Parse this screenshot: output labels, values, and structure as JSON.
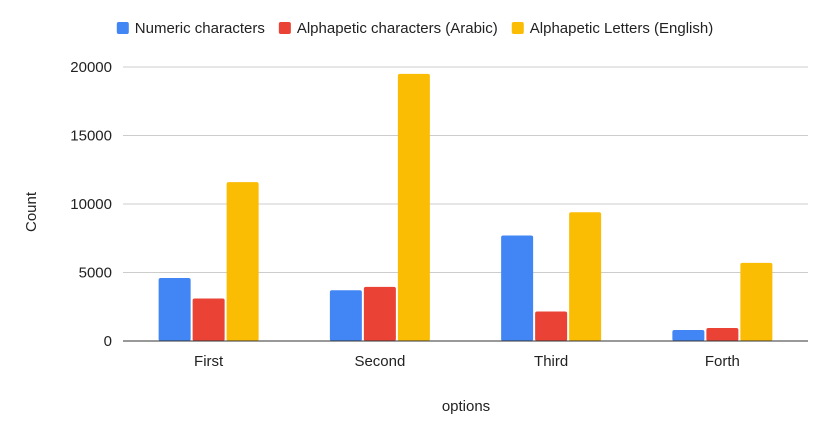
{
  "chart_data": {
    "type": "bar",
    "title": "",
    "xlabel": "options",
    "ylabel": "Count",
    "categories": [
      "First",
      "Second",
      "Third",
      "Forth"
    ],
    "series": [
      {
        "name": "Numeric characters",
        "color": "#4285f4",
        "values": [
          4600,
          3700,
          7700,
          800
        ]
      },
      {
        "name": "Alphapetic characters (Arabic)",
        "color": "#ea4335",
        "values": [
          3100,
          3950,
          2150,
          950
        ]
      },
      {
        "name": "Alphapetic Letters (English)",
        "color": "#fbbc04",
        "values": [
          11600,
          19500,
          9400,
          5700
        ]
      }
    ],
    "ylim": [
      0,
      20000
    ],
    "yticks": [
      "0",
      "5000",
      "10000",
      "15000",
      "20000"
    ],
    "grid": true,
    "legend_position": "top"
  }
}
